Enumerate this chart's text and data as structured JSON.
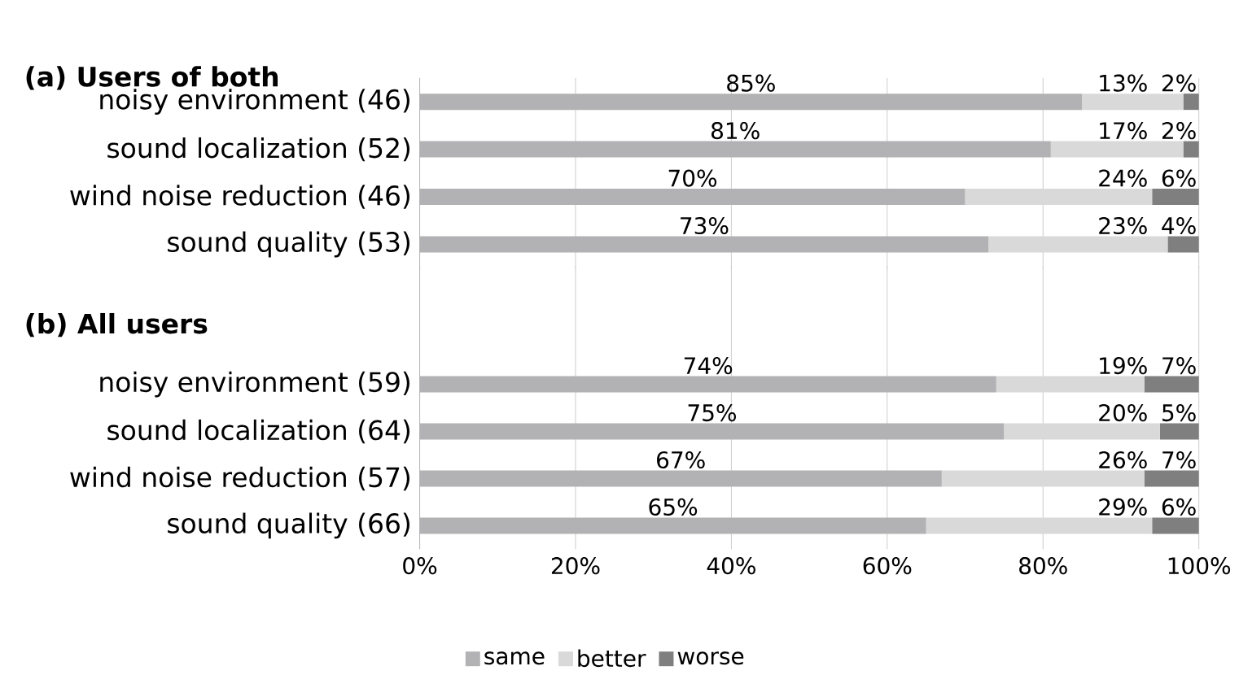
{
  "chart_data": [
    {
      "type": "bar",
      "orientation": "horizontal",
      "stacked": true,
      "title": "(a) Users of both",
      "categories": [
        "noisy environment (46)",
        "sound localization (52)",
        "wind noise reduction (46)",
        "sound quality (53)"
      ],
      "series": [
        {
          "color": "#b2b2b4",
          "values": [
            85,
            81,
            70,
            73
          ],
          "value_labels": [
            "85%",
            "81%",
            "70%",
            "73%"
          ]
        },
        {
          "color": "#d9d9d9",
          "values": [
            13,
            17,
            24,
            23
          ],
          "value_labels": [
            "13%",
            "17%",
            "24%",
            "23%"
          ]
        },
        {
          "color": "#7f7f7f",
          "values": [
            2,
            2,
            6,
            4
          ],
          "value_labels": [
            "2%",
            "2%",
            "6%",
            "4%"
          ]
        }
      ],
      "xlim": [
        0,
        100
      ],
      "xticks": [
        0,
        20,
        40,
        60,
        80,
        100
      ],
      "grid": "x",
      "tick_labels": "y"
    },
    {
      "type": "bar",
      "orientation": "horizontal",
      "stacked": true,
      "title": "(b) All users",
      "categories": [
        "noisy environment (59)",
        "sound localization (64)",
        "wind noise reduction (57)",
        "sound quality (66)"
      ],
      "series": [
        {
          "name": "same",
          "color": "#b2b2b4",
          "values": [
            74,
            75,
            67,
            65
          ],
          "value_labels": [
            "74%",
            "75%",
            "67%",
            "65%"
          ]
        },
        {
          "name": "better",
          "color": "#d9d9d9",
          "values": [
            19,
            20,
            26,
            29
          ],
          "value_labels": [
            "19%",
            "20%",
            "26%",
            "29%"
          ]
        },
        {
          "name": "worse",
          "color": "#7f7f7f",
          "values": [
            7,
            5,
            7,
            6
          ],
          "value_labels": [
            "7%",
            "5%",
            "7%",
            "6%"
          ]
        }
      ],
      "xlim": [
        0,
        100
      ],
      "xticks": [
        {
          "value": 0,
          "label": "0%"
        },
        {
          "value": 20,
          "label": "20%"
        },
        {
          "value": 40,
          "label": "40%"
        },
        {
          "value": 60,
          "label": "60%"
        },
        {
          "value": 80,
          "label": "80%"
        },
        {
          "value": 100,
          "label": "100%"
        }
      ],
      "grid": "x",
      "legend": "bottom"
    }
  ]
}
